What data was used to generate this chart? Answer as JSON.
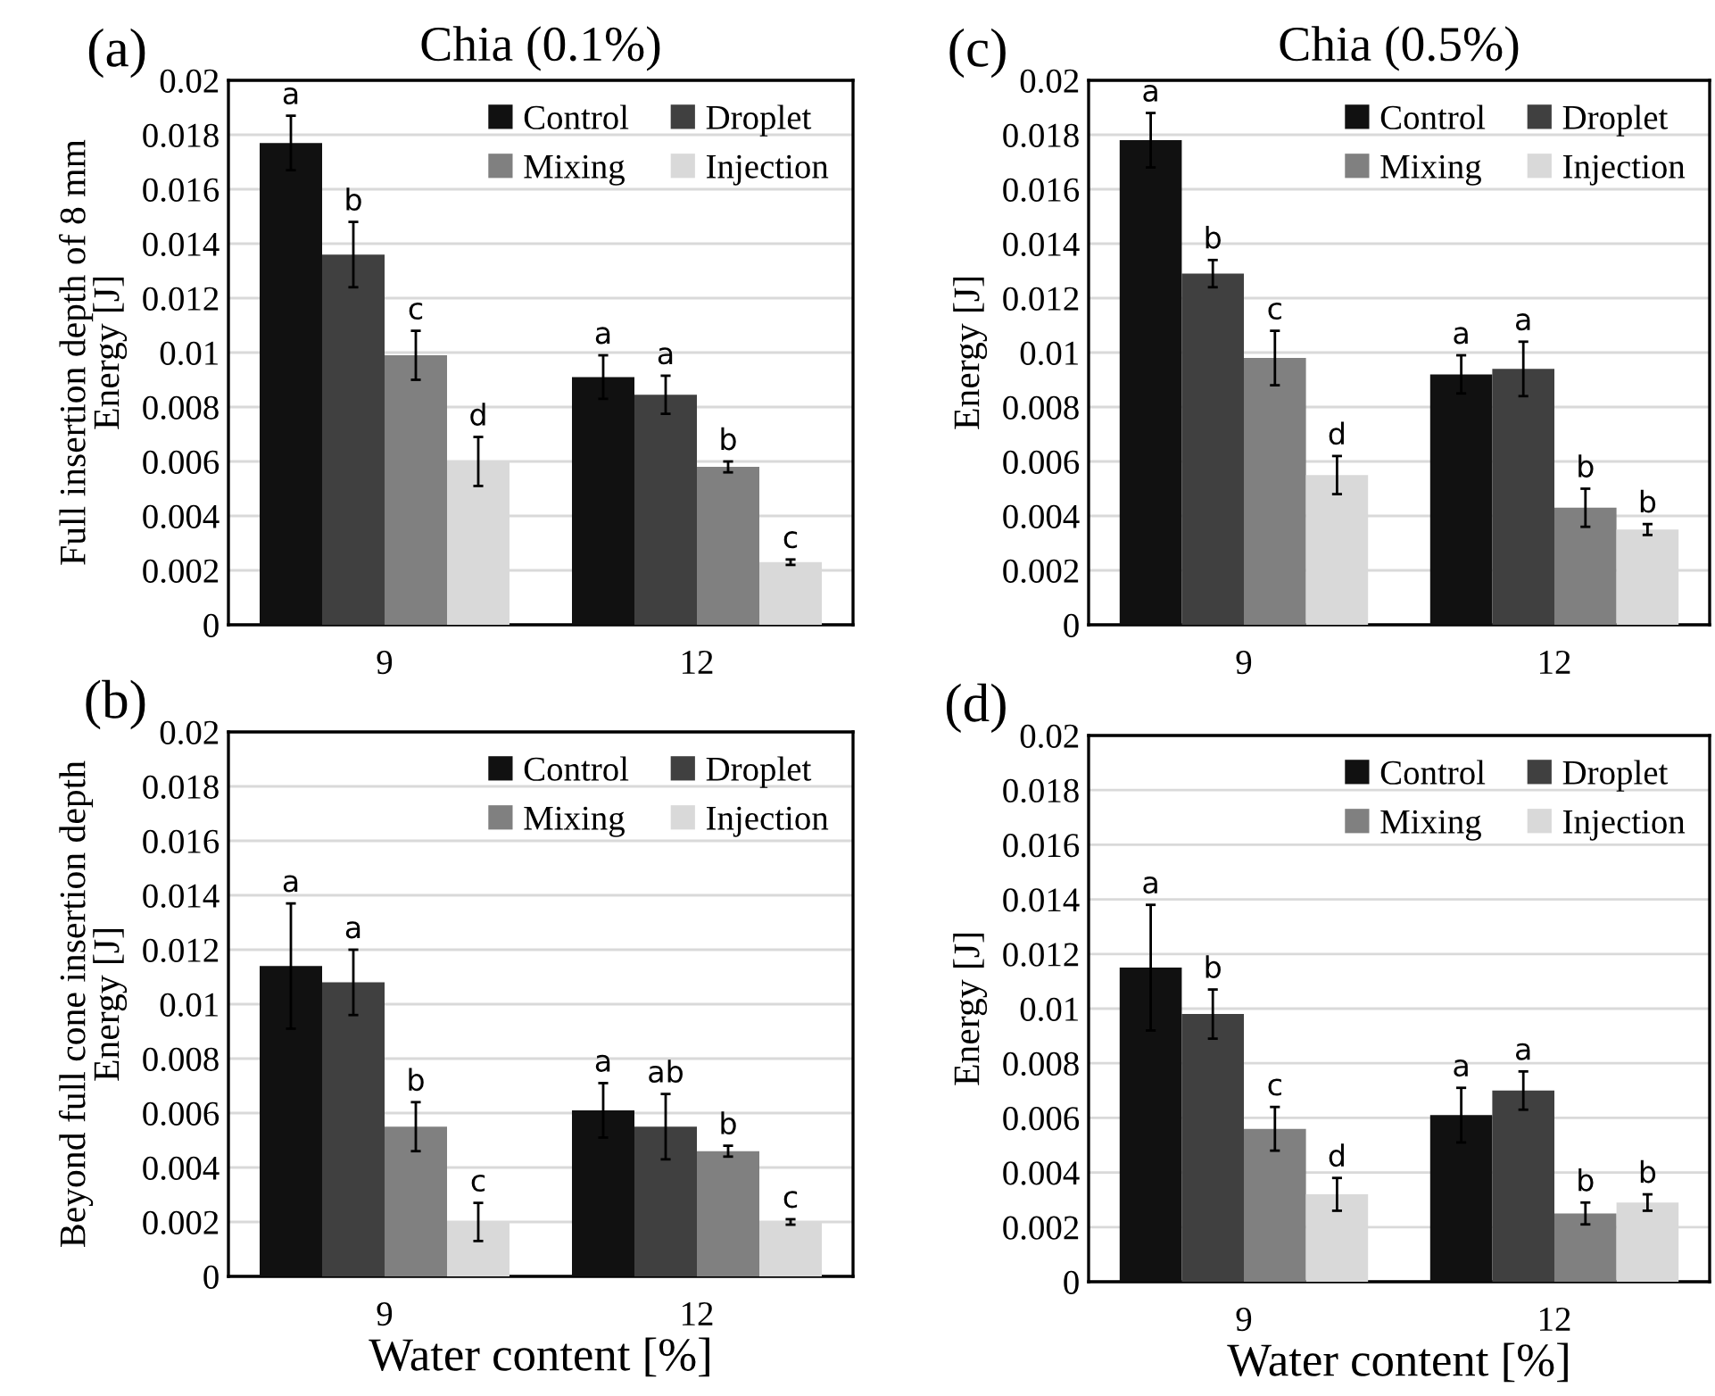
{
  "chart_data": [
    {
      "type": "bar",
      "title": "Chia (0.1%)",
      "ylabel": "Full insertion depth of 8 mm\nEnergy [J]",
      "annotations": [
        "(a)"
      ],
      "categories": [
        "9",
        "12"
      ],
      "ylim": [
        0,
        0.02
      ],
      "yticks": [
        0,
        0.002,
        0.004,
        0.006,
        0.008,
        0.01,
        0.012,
        0.014,
        0.016,
        0.018,
        0.02
      ],
      "grid": "y",
      "legend": "top right",
      "series": [
        {
          "name": "Control",
          "color": "#111111",
          "values": [
            0.0177,
            0.0091
          ],
          "errors": [
            0.001,
            0.0008
          ],
          "value_labels": [
            "a",
            "a"
          ]
        },
        {
          "name": "Droplet",
          "color": "#404040",
          "values": [
            0.0136,
            0.00845
          ],
          "errors": [
            0.0012,
            0.0007
          ],
          "value_labels": [
            "b",
            "a"
          ]
        },
        {
          "name": "Mixing",
          "color": "#808080",
          "values": [
            0.0099,
            0.0058
          ],
          "errors": [
            0.0009,
            0.0002
          ],
          "value_labels": [
            "c",
            "b"
          ]
        },
        {
          "name": "Injection",
          "color": "#d9d9d9",
          "values": [
            0.006,
            0.0023
          ],
          "errors": [
            0.0009,
            0.0001
          ],
          "value_labels": [
            "d",
            "c"
          ]
        }
      ]
    },
    {
      "type": "bar",
      "title": "Chia (0.5%)",
      "ylabel": "Energy [J]",
      "annotations": [
        "(c)"
      ],
      "categories": [
        "9",
        "12"
      ],
      "ylim": [
        0,
        0.02
      ],
      "yticks": [
        0,
        0.002,
        0.004,
        0.006,
        0.008,
        0.01,
        0.012,
        0.014,
        0.016,
        0.018,
        0.02
      ],
      "grid": "y",
      "legend": "top right",
      "series": [
        {
          "name": "Control",
          "color": "#111111",
          "values": [
            0.0178,
            0.0092
          ],
          "errors": [
            0.001,
            0.0007
          ],
          "value_labels": [
            "a",
            "a"
          ]
        },
        {
          "name": "Droplet",
          "color": "#404040",
          "values": [
            0.0129,
            0.0094
          ],
          "errors": [
            0.0005,
            0.001
          ],
          "value_labels": [
            "b",
            "a"
          ]
        },
        {
          "name": "Mixing",
          "color": "#808080",
          "values": [
            0.0098,
            0.0043
          ],
          "errors": [
            0.001,
            0.0007
          ],
          "value_labels": [
            "c",
            "b"
          ]
        },
        {
          "name": "Injection",
          "color": "#d9d9d9",
          "values": [
            0.0055,
            0.0035
          ],
          "errors": [
            0.0007,
            0.0002
          ],
          "value_labels": [
            "d",
            "b"
          ]
        }
      ]
    },
    {
      "type": "bar",
      "xlabel": "Water content [%]",
      "ylabel": "Beyond full cone insertion depth\nEnergy [J]",
      "annotations": [
        "(b)"
      ],
      "categories": [
        "9",
        "12"
      ],
      "ylim": [
        0,
        0.02
      ],
      "yticks": [
        0,
        0.002,
        0.004,
        0.006,
        0.008,
        0.01,
        0.012,
        0.014,
        0.016,
        0.018,
        0.02
      ],
      "grid": "y",
      "legend": "top right",
      "series": [
        {
          "name": "Control",
          "color": "#111111",
          "values": [
            0.0114,
            0.0061
          ],
          "errors": [
            0.0023,
            0.001
          ],
          "value_labels": [
            "a",
            "a"
          ]
        },
        {
          "name": "Droplet",
          "color": "#404040",
          "values": [
            0.0108,
            0.0055
          ],
          "errors": [
            0.0012,
            0.0012
          ],
          "value_labels": [
            "a",
            "ab"
          ]
        },
        {
          "name": "Mixing",
          "color": "#808080",
          "values": [
            0.0055,
            0.0046
          ],
          "errors": [
            0.0009,
            0.0002
          ],
          "value_labels": [
            "b",
            "b"
          ]
        },
        {
          "name": "Injection",
          "color": "#d9d9d9",
          "values": [
            0.002,
            0.002
          ],
          "errors": [
            0.0007,
            0.0001
          ],
          "value_labels": [
            "c",
            "c"
          ]
        }
      ]
    },
    {
      "type": "bar",
      "xlabel": "Water content [%]",
      "ylabel": "Energy [J]",
      "annotations": [
        "(d)"
      ],
      "categories": [
        "9",
        "12"
      ],
      "ylim": [
        0,
        0.02
      ],
      "yticks": [
        0,
        0.002,
        0.004,
        0.006,
        0.008,
        0.01,
        0.012,
        0.014,
        0.016,
        0.018,
        0.02
      ],
      "grid": "y",
      "legend": "top right",
      "series": [
        {
          "name": "Control",
          "color": "#111111",
          "values": [
            0.0115,
            0.0061
          ],
          "errors": [
            0.0023,
            0.001
          ],
          "value_labels": [
            "a",
            "a"
          ]
        },
        {
          "name": "Droplet",
          "color": "#404040",
          "values": [
            0.0098,
            0.007
          ],
          "errors": [
            0.0009,
            0.0007
          ],
          "value_labels": [
            "b",
            "a"
          ]
        },
        {
          "name": "Mixing",
          "color": "#808080",
          "values": [
            0.0056,
            0.0025
          ],
          "errors": [
            0.0008,
            0.0004
          ],
          "value_labels": [
            "c",
            "b"
          ]
        },
        {
          "name": "Injection",
          "color": "#d9d9d9",
          "values": [
            0.0032,
            0.0029
          ],
          "errors": [
            0.0006,
            0.0003
          ],
          "value_labels": [
            "d",
            "b"
          ]
        }
      ]
    }
  ]
}
